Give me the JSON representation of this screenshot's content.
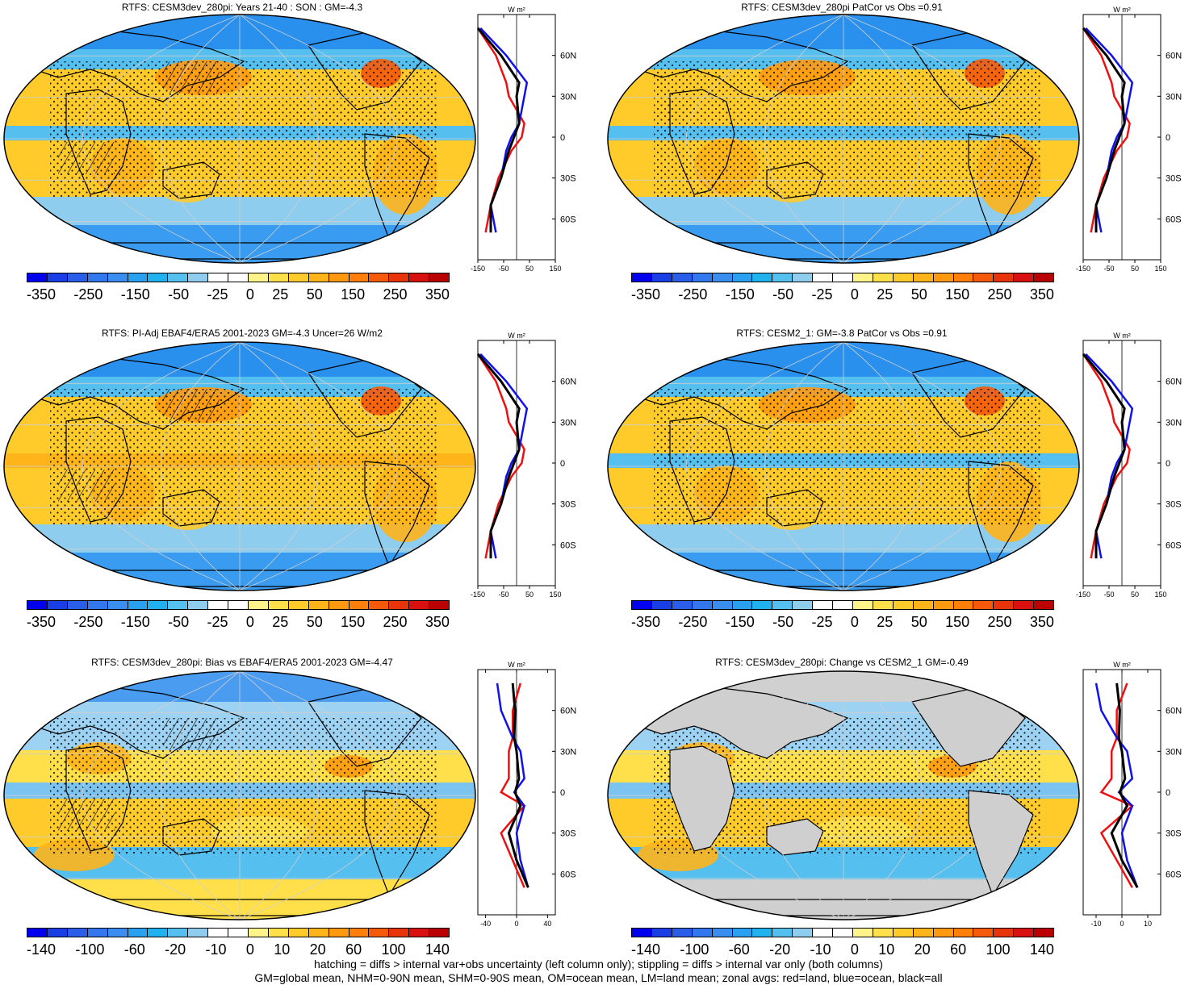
{
  "panels": [
    {
      "title": "RTFS: CESM3dev_280pi: Years 21-40 : SON : GM=-4.3",
      "scale": "full",
      "variant": 0,
      "hatch": true
    },
    {
      "title": "RTFS: CESM3dev_280pi PatCor vs Obs =0.91",
      "scale": "full",
      "variant": 1,
      "hatch": false
    },
    {
      "title": "RTFS: PI-Adj EBAF4/ERA5 2001-2023 GM=-4.3 Uncer=26 W/m2",
      "scale": "full",
      "variant": 2,
      "hatch": true
    },
    {
      "title": "RTFS: CESM2_1: GM=-3.8 PatCor vs Obs =0.91",
      "scale": "full",
      "variant": 3,
      "hatch": false
    },
    {
      "title": "RTFS: CESM3dev_280pi: Bias vs EBAF4/ERA5 2001-2023  GM=-4.47",
      "scale": "bias",
      "variant": 4,
      "hatch": true
    },
    {
      "title": "RTFS: CESM3dev_280pi: Change vs CESM2_1 GM=-0.49",
      "scale": "bias",
      "variant": 5,
      "hatch": false
    }
  ],
  "colorbars": {
    "full_labels": [
      "-350",
      "-250",
      "-150",
      "-50",
      "-25",
      "0",
      "25",
      "50",
      "150",
      "250",
      "350"
    ],
    "bias_labels": [
      "-140",
      "-100",
      "-60",
      "-20",
      "-10",
      "0",
      "10",
      "20",
      "60",
      "100",
      "140"
    ],
    "colors": [
      "#0000ee",
      "#1a3ee6",
      "#2a5ee8",
      "#3377ee",
      "#3a8ef0",
      "#2aa0f0",
      "#1fb2ef",
      "#55bff0",
      "#8fcdef",
      "#ffffff",
      "#ffffff",
      "#fff48a",
      "#ffe04a",
      "#ffcb2a",
      "#ffb41a",
      "#ff9a10",
      "#ff7f0a",
      "#f55a0a",
      "#e8340a",
      "#d81010",
      "#bb0000"
    ]
  },
  "zonal_axes": {
    "unit": "W m²",
    "lat_labels": [
      "60N",
      "30N",
      "0",
      "30S",
      "60S"
    ],
    "full_ticks": [
      "-150",
      "-50",
      "50",
      "150"
    ],
    "bias_ticks_left": [
      "-40",
      "0",
      "40"
    ],
    "bias_ticks_right": [
      "-10",
      "0",
      "10"
    ]
  },
  "chart_data": {
    "type": "line",
    "description_series": [
      "land (red)",
      "ocean (blue)",
      "all (black)"
    ],
    "lat": [
      80,
      60,
      40,
      30,
      10,
      0,
      -10,
      -30,
      -50,
      -70
    ],
    "full_series": [
      {
        "name": "all",
        "values": [
          -150,
          -60,
          10,
          0,
          10,
          -10,
          -30,
          -60,
          -100,
          -100
        ]
      },
      {
        "name": "ocean",
        "values": [
          -140,
          -40,
          40,
          30,
          10,
          -20,
          -40,
          -60,
          -100,
          -80
        ]
      },
      {
        "name": "land",
        "values": [
          -150,
          -80,
          -40,
          -30,
          30,
          20,
          -20,
          -70,
          -100,
          -120
        ]
      }
    ],
    "bias_series": [
      {
        "name": "all",
        "values": [
          -5,
          -2,
          -3,
          0,
          3,
          -2,
          5,
          -10,
          0,
          15
        ]
      },
      {
        "name": "ocean",
        "values": [
          -25,
          -20,
          -5,
          5,
          10,
          -3,
          10,
          0,
          5,
          15
        ]
      },
      {
        "name": "land",
        "values": [
          5,
          -5,
          -5,
          -10,
          -10,
          -20,
          10,
          -20,
          -5,
          10
        ]
      }
    ],
    "xlim_full": [
      -150,
      150
    ],
    "xlim_bias_left": [
      -50,
      50
    ],
    "xlim_bias_right": [
      -15,
      15
    ]
  },
  "footer": {
    "line1": "hatching = diffs > internal var+obs uncertainty (left column only); stippling = diffs > internal var only (both columns)",
    "line2": "GM=global mean, NHM=0-90N mean, SHM=0-90S mean, OM=ocean mean, LM=land mean; zonal avgs: red=land, blue=ocean, black=all"
  }
}
